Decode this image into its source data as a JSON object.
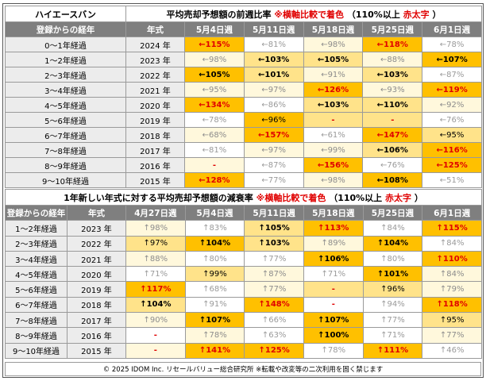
{
  "table1": {
    "brand": "ハイエースバン",
    "title_main": "平均売却予想額の前週比率",
    "title_note": "※横軸比較で着色",
    "title_paren_open": "（110%以上",
    "title_red": "赤太字",
    "title_paren_close": "）",
    "headers": [
      "登録からの経年",
      "年式",
      "5月4日週",
      "5月11日週",
      "5月18日週",
      "5月25日週",
      "6月1日週"
    ],
    "rows": [
      {
        "age": "0～1年経過",
        "year": "2024 年",
        "cells": [
          {
            "v": "←115%",
            "lvl": 3,
            "red": true
          },
          {
            "v": "←81%",
            "lvl": 0
          },
          {
            "v": "←98%",
            "lvl": 1
          },
          {
            "v": "←118%",
            "lvl": 3,
            "red": true
          },
          {
            "v": "←78%",
            "lvl": 0
          }
        ]
      },
      {
        "age": "1～2年経過",
        "year": "2023 年",
        "cells": [
          {
            "v": "←98%",
            "lvl": 1
          },
          {
            "v": "←103%",
            "lvl": 2,
            "bold": true
          },
          {
            "v": "←105%",
            "lvl": 2,
            "bold": true
          },
          {
            "v": "←88%",
            "lvl": 1
          },
          {
            "v": "←107%",
            "lvl": 3,
            "bold": true
          }
        ]
      },
      {
        "age": "2～3年経過",
        "year": "2022 年",
        "cells": [
          {
            "v": "←105%",
            "lvl": 3,
            "bold": true
          },
          {
            "v": "←101%",
            "lvl": 2,
            "bold": true
          },
          {
            "v": "←91%",
            "lvl": 1
          },
          {
            "v": "←103%",
            "lvl": 2,
            "bold": true
          },
          {
            "v": "←87%",
            "lvl": 0
          }
        ]
      },
      {
        "age": "3～4年経過",
        "year": "2021 年",
        "cells": [
          {
            "v": "←95%",
            "lvl": 1
          },
          {
            "v": "←97%",
            "lvl": 1
          },
          {
            "v": "←126%",
            "lvl": 3,
            "red": true
          },
          {
            "v": "←93%",
            "lvl": 1
          },
          {
            "v": "←119%",
            "lvl": 3,
            "red": true
          }
        ]
      },
      {
        "age": "4～5年経過",
        "year": "2020 年",
        "cells": [
          {
            "v": "←134%",
            "lvl": 3,
            "red": true
          },
          {
            "v": "←86%",
            "lvl": 0
          },
          {
            "v": "←103%",
            "lvl": 2,
            "bold": true
          },
          {
            "v": "←110%",
            "lvl": 2,
            "bold": true
          },
          {
            "v": "←92%",
            "lvl": 1
          }
        ]
      },
      {
        "age": "5～6年経過",
        "year": "2019 年",
        "cells": [
          {
            "v": "←78%",
            "lvl": 0
          },
          {
            "v": "←96%",
            "lvl": 3
          },
          {
            "v": "-",
            "lvl": 2,
            "red": true
          },
          {
            "v": "-",
            "lvl": 2,
            "red": true
          },
          {
            "v": "←76%",
            "lvl": 0
          }
        ]
      },
      {
        "age": "6～7年経過",
        "year": "2018 年",
        "cells": [
          {
            "v": "←68%",
            "lvl": 1
          },
          {
            "v": "←157%",
            "lvl": 3,
            "red": true
          },
          {
            "v": "←61%",
            "lvl": 0
          },
          {
            "v": "←147%",
            "lvl": 3,
            "red": true
          },
          {
            "v": "←95%",
            "lvl": 2
          }
        ]
      },
      {
        "age": "7～8年経過",
        "year": "2017 年",
        "cells": [
          {
            "v": "←81%",
            "lvl": 0
          },
          {
            "v": "←97%",
            "lvl": 1
          },
          {
            "v": "←99%",
            "lvl": 1
          },
          {
            "v": "←106%",
            "lvl": 2,
            "bold": true
          },
          {
            "v": "←116%",
            "lvl": 3,
            "red": true
          }
        ]
      },
      {
        "age": "8～9年経過",
        "year": "2016 年",
        "cells": [
          {
            "v": "-",
            "lvl": 1,
            "red": true
          },
          {
            "v": "←87%",
            "lvl": 0
          },
          {
            "v": "←156%",
            "lvl": 3,
            "red": true
          },
          {
            "v": "←76%",
            "lvl": 0
          },
          {
            "v": "←125%",
            "lvl": 3,
            "red": true
          }
        ]
      },
      {
        "age": "9～10年経過",
        "year": "2015 年",
        "cells": [
          {
            "v": "←128%",
            "lvl": 3,
            "red": true
          },
          {
            "v": "←77%",
            "lvl": 0
          },
          {
            "v": "←98%",
            "lvl": 1
          },
          {
            "v": "←108%",
            "lvl": 3,
            "bold": true
          },
          {
            "v": "←51%",
            "lvl": 0
          }
        ]
      }
    ]
  },
  "table2": {
    "title_main": "1年新しい年式に対する平均売却予想額の減衰率",
    "title_note": "※横軸比較で着色",
    "title_paren_open": "（110%以上",
    "title_red": "赤太字",
    "title_paren_close": "）",
    "headers": [
      "登録からの経年",
      "年式",
      "4月27日週",
      "5月4日週",
      "5月11日週",
      "5月18日週",
      "5月25日週",
      "6月1日週"
    ],
    "rows": [
      {
        "age": "1～2年経過",
        "year": "2023 年",
        "cells": [
          {
            "v": "↑98%",
            "lvl": 1
          },
          {
            "v": "↑83%",
            "lvl": 0
          },
          {
            "v": "↑105%",
            "lvl": 2,
            "bold": true
          },
          {
            "v": "↑113%",
            "lvl": 3,
            "red": true
          },
          {
            "v": "↑84%",
            "lvl": 0
          },
          {
            "v": "↑115%",
            "lvl": 3,
            "red": true
          }
        ]
      },
      {
        "age": "2～3年経過",
        "year": "2022 年",
        "cells": [
          {
            "v": "↑97%",
            "lvl": 2
          },
          {
            "v": "↑104%",
            "lvl": 3,
            "bold": true
          },
          {
            "v": "↑103%",
            "lvl": 2,
            "bold": true
          },
          {
            "v": "↑89%",
            "lvl": 1
          },
          {
            "v": "↑104%",
            "lvl": 3,
            "bold": true
          },
          {
            "v": "↑84%",
            "lvl": 0
          }
        ]
      },
      {
        "age": "3～4年経過",
        "year": "2021 年",
        "cells": [
          {
            "v": "↑88%",
            "lvl": 1
          },
          {
            "v": "↑80%",
            "lvl": 0
          },
          {
            "v": "↑77%",
            "lvl": 0
          },
          {
            "v": "↑106%",
            "lvl": 3,
            "bold": true
          },
          {
            "v": "↑80%",
            "lvl": 0
          },
          {
            "v": "↑110%",
            "lvl": 3,
            "red": true
          }
        ]
      },
      {
        "age": "4～5年経過",
        "year": "2020 年",
        "cells": [
          {
            "v": "↑71%",
            "lvl": 0
          },
          {
            "v": "↑99%",
            "lvl": 2
          },
          {
            "v": "↑87%",
            "lvl": 1
          },
          {
            "v": "↑71%",
            "lvl": 0
          },
          {
            "v": "↑101%",
            "lvl": 3,
            "bold": true
          },
          {
            "v": "↑84%",
            "lvl": 1
          }
        ]
      },
      {
        "age": "5～6年経過",
        "year": "2019 年",
        "cells": [
          {
            "v": "↑117%",
            "lvl": 3,
            "red": true
          },
          {
            "v": "↑68%",
            "lvl": 0
          },
          {
            "v": "↑77%",
            "lvl": 1
          },
          {
            "v": "-",
            "lvl": 2,
            "red": true
          },
          {
            "v": "↑96%",
            "lvl": 2
          },
          {
            "v": "↑79%",
            "lvl": 1
          }
        ]
      },
      {
        "age": "6～7年経過",
        "year": "2018 年",
        "cells": [
          {
            "v": "↑104%",
            "lvl": 2,
            "bold": true
          },
          {
            "v": "↑91%",
            "lvl": 0
          },
          {
            "v": "↑148%",
            "lvl": 3,
            "red": true
          },
          {
            "v": "-",
            "lvl": 0,
            "red": true
          },
          {
            "v": "↑94%",
            "lvl": 0
          },
          {
            "v": "↑118%",
            "lvl": 3,
            "red": true
          }
        ]
      },
      {
        "age": "7～8年経過",
        "year": "2017 年",
        "cells": [
          {
            "v": "↑90%",
            "lvl": 1
          },
          {
            "v": "↑107%",
            "lvl": 3,
            "bold": true
          },
          {
            "v": "↑66%",
            "lvl": 0
          },
          {
            "v": "↑107%",
            "lvl": 3,
            "bold": true
          },
          {
            "v": "↑77%",
            "lvl": 0
          },
          {
            "v": "↑95%",
            "lvl": 2
          }
        ]
      },
      {
        "age": "8～9年経過",
        "year": "2016 年",
        "cells": [
          {
            "v": "-",
            "lvl": 0,
            "red": true
          },
          {
            "v": "↑78%",
            "lvl": 1
          },
          {
            "v": "↑63%",
            "lvl": 0
          },
          {
            "v": "↑100%",
            "lvl": 3,
            "bold": true
          },
          {
            "v": "↑71%",
            "lvl": 0
          },
          {
            "v": "↑77%",
            "lvl": 1
          }
        ]
      },
      {
        "age": "9～10年経過",
        "year": "2015 年",
        "cells": [
          {
            "v": "-",
            "lvl": 1,
            "red": true
          },
          {
            "v": "↑141%",
            "lvl": 3,
            "red": true
          },
          {
            "v": "↑125%",
            "lvl": 3,
            "red": true
          },
          {
            "v": "↑78%",
            "lvl": 0
          },
          {
            "v": "↑111%",
            "lvl": 3,
            "red": true
          },
          {
            "v": "↑46%",
            "lvl": 0
          }
        ]
      }
    ]
  },
  "footer": "© 2025 IDOM Inc. リセールバリュー総合研究所 ※転載や改変等の二次利用を固く禁じます",
  "colors": {
    "header_bg": "#7f7f7f",
    "label_bg": "#ececec",
    "level0": "#ffffff",
    "level1": "#fff8dc",
    "level2": "#ffe38a",
    "level3": "#ffc000",
    "accent_red": "#e00000"
  }
}
